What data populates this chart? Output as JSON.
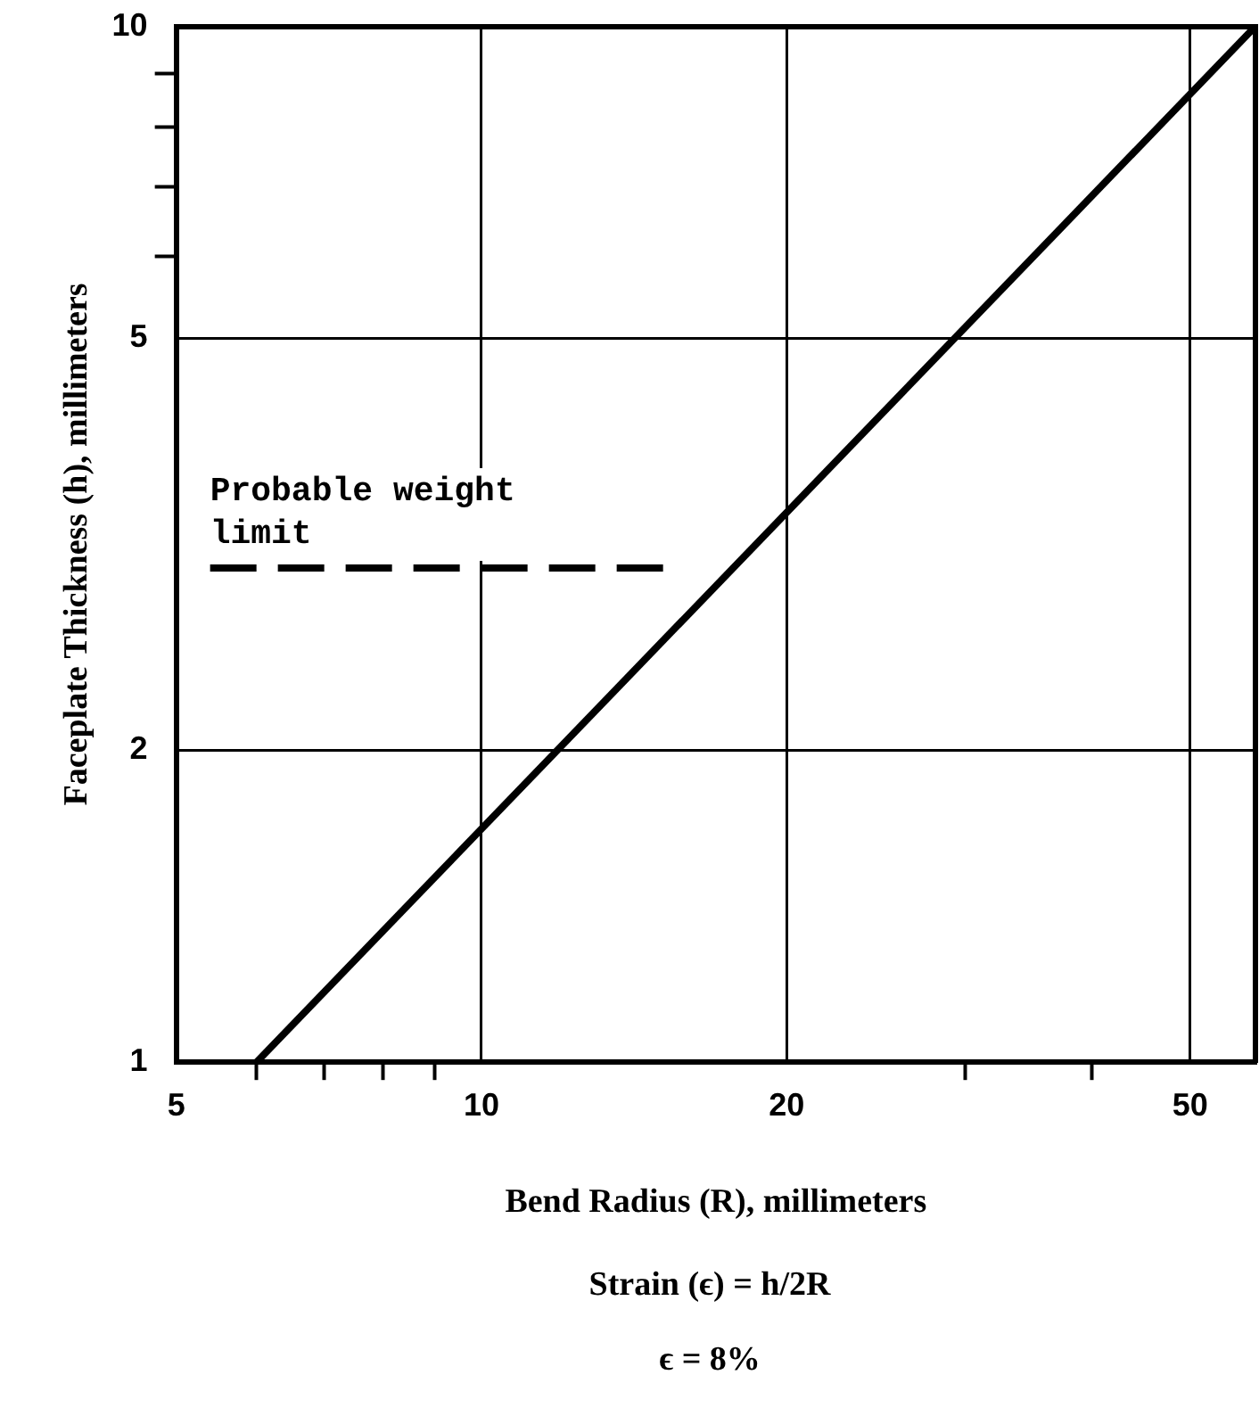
{
  "chart_data": {
    "type": "line",
    "xlabel": "Bend Radius (R), millimeters",
    "ylabel": "Faceplate Thickness (h), millimeters",
    "log": "xy",
    "xlim": [
      5,
      58
    ],
    "xticks": [
      5,
      {
        "value": 6,
        "label": null
      },
      {
        "value": 7,
        "label": null
      },
      {
        "value": 8,
        "label": null
      },
      {
        "value": 9,
        "label": null
      },
      10,
      20,
      {
        "value": 30,
        "label": null
      },
      {
        "value": 40,
        "label": null
      },
      50
    ],
    "ylim": [
      1,
      10
    ],
    "yticks": [
      1,
      2,
      5,
      {
        "value": 6,
        "label": null
      },
      {
        "value": 7,
        "label": null
      },
      {
        "value": 8,
        "label": null
      },
      {
        "value": 9,
        "label": null
      },
      10
    ],
    "grid": true,
    "legend": false,
    "series": [
      {
        "color": "#000000",
        "x": [
          6,
          58
        ],
        "values": [
          1,
          10
        ],
        "line_style": "solid"
      },
      {
        "color": "#000000",
        "x": [
          5.4,
          15.2
        ],
        "values": [
          3,
          3
        ],
        "line_style": "dashed"
      }
    ],
    "annotations": [
      {
        "text": "Probable weight limit",
        "x": 5.4,
        "y": 3
      },
      "Strain (ϵ) = h/2R",
      "ϵ = 8%"
    ]
  }
}
